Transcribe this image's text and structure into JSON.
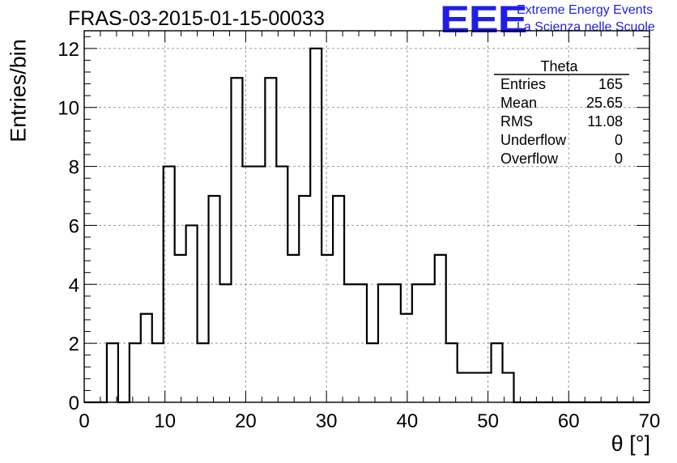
{
  "chart_data": {
    "type": "histogram",
    "title": "FRAS-03-2015-01-15-00033",
    "xlabel": "θ [°]",
    "ylabel": "Entries/bin",
    "xlim": [
      0,
      70
    ],
    "ylim": [
      0,
      12.6
    ],
    "bin_width": 1.4,
    "bin_edges_start": 0,
    "x_ticks": [
      "0",
      "10",
      "20",
      "30",
      "40",
      "50",
      "60",
      "70"
    ],
    "y_ticks": [
      "0",
      "2",
      "4",
      "6",
      "8",
      "10",
      "12"
    ],
    "grid": true,
    "values": [
      0,
      0,
      2,
      0,
      2,
      3,
      2,
      8,
      5,
      6,
      2,
      7,
      4,
      11,
      8,
      8,
      11,
      8,
      5,
      7,
      12,
      5,
      7,
      4,
      4,
      2,
      4,
      4,
      3,
      4,
      4,
      5,
      2,
      1,
      1,
      1,
      2,
      1,
      0,
      0,
      0,
      0,
      0,
      0,
      0,
      0,
      0,
      0,
      0,
      0
    ],
    "stats": {
      "name": "Theta",
      "rows": [
        {
          "label": "Entries",
          "value": "165"
        },
        {
          "label": "Mean",
          "value": "25.65"
        },
        {
          "label": "RMS",
          "value": "11.08"
        },
        {
          "label": "Underflow",
          "value": "0"
        },
        {
          "label": "Overflow",
          "value": "0"
        }
      ]
    }
  },
  "logo": {
    "mark": "EEE",
    "line1": "Extreme Energy Events",
    "line2": "La Scienza nelle Scuole",
    "color": "#1f1fe6"
  }
}
